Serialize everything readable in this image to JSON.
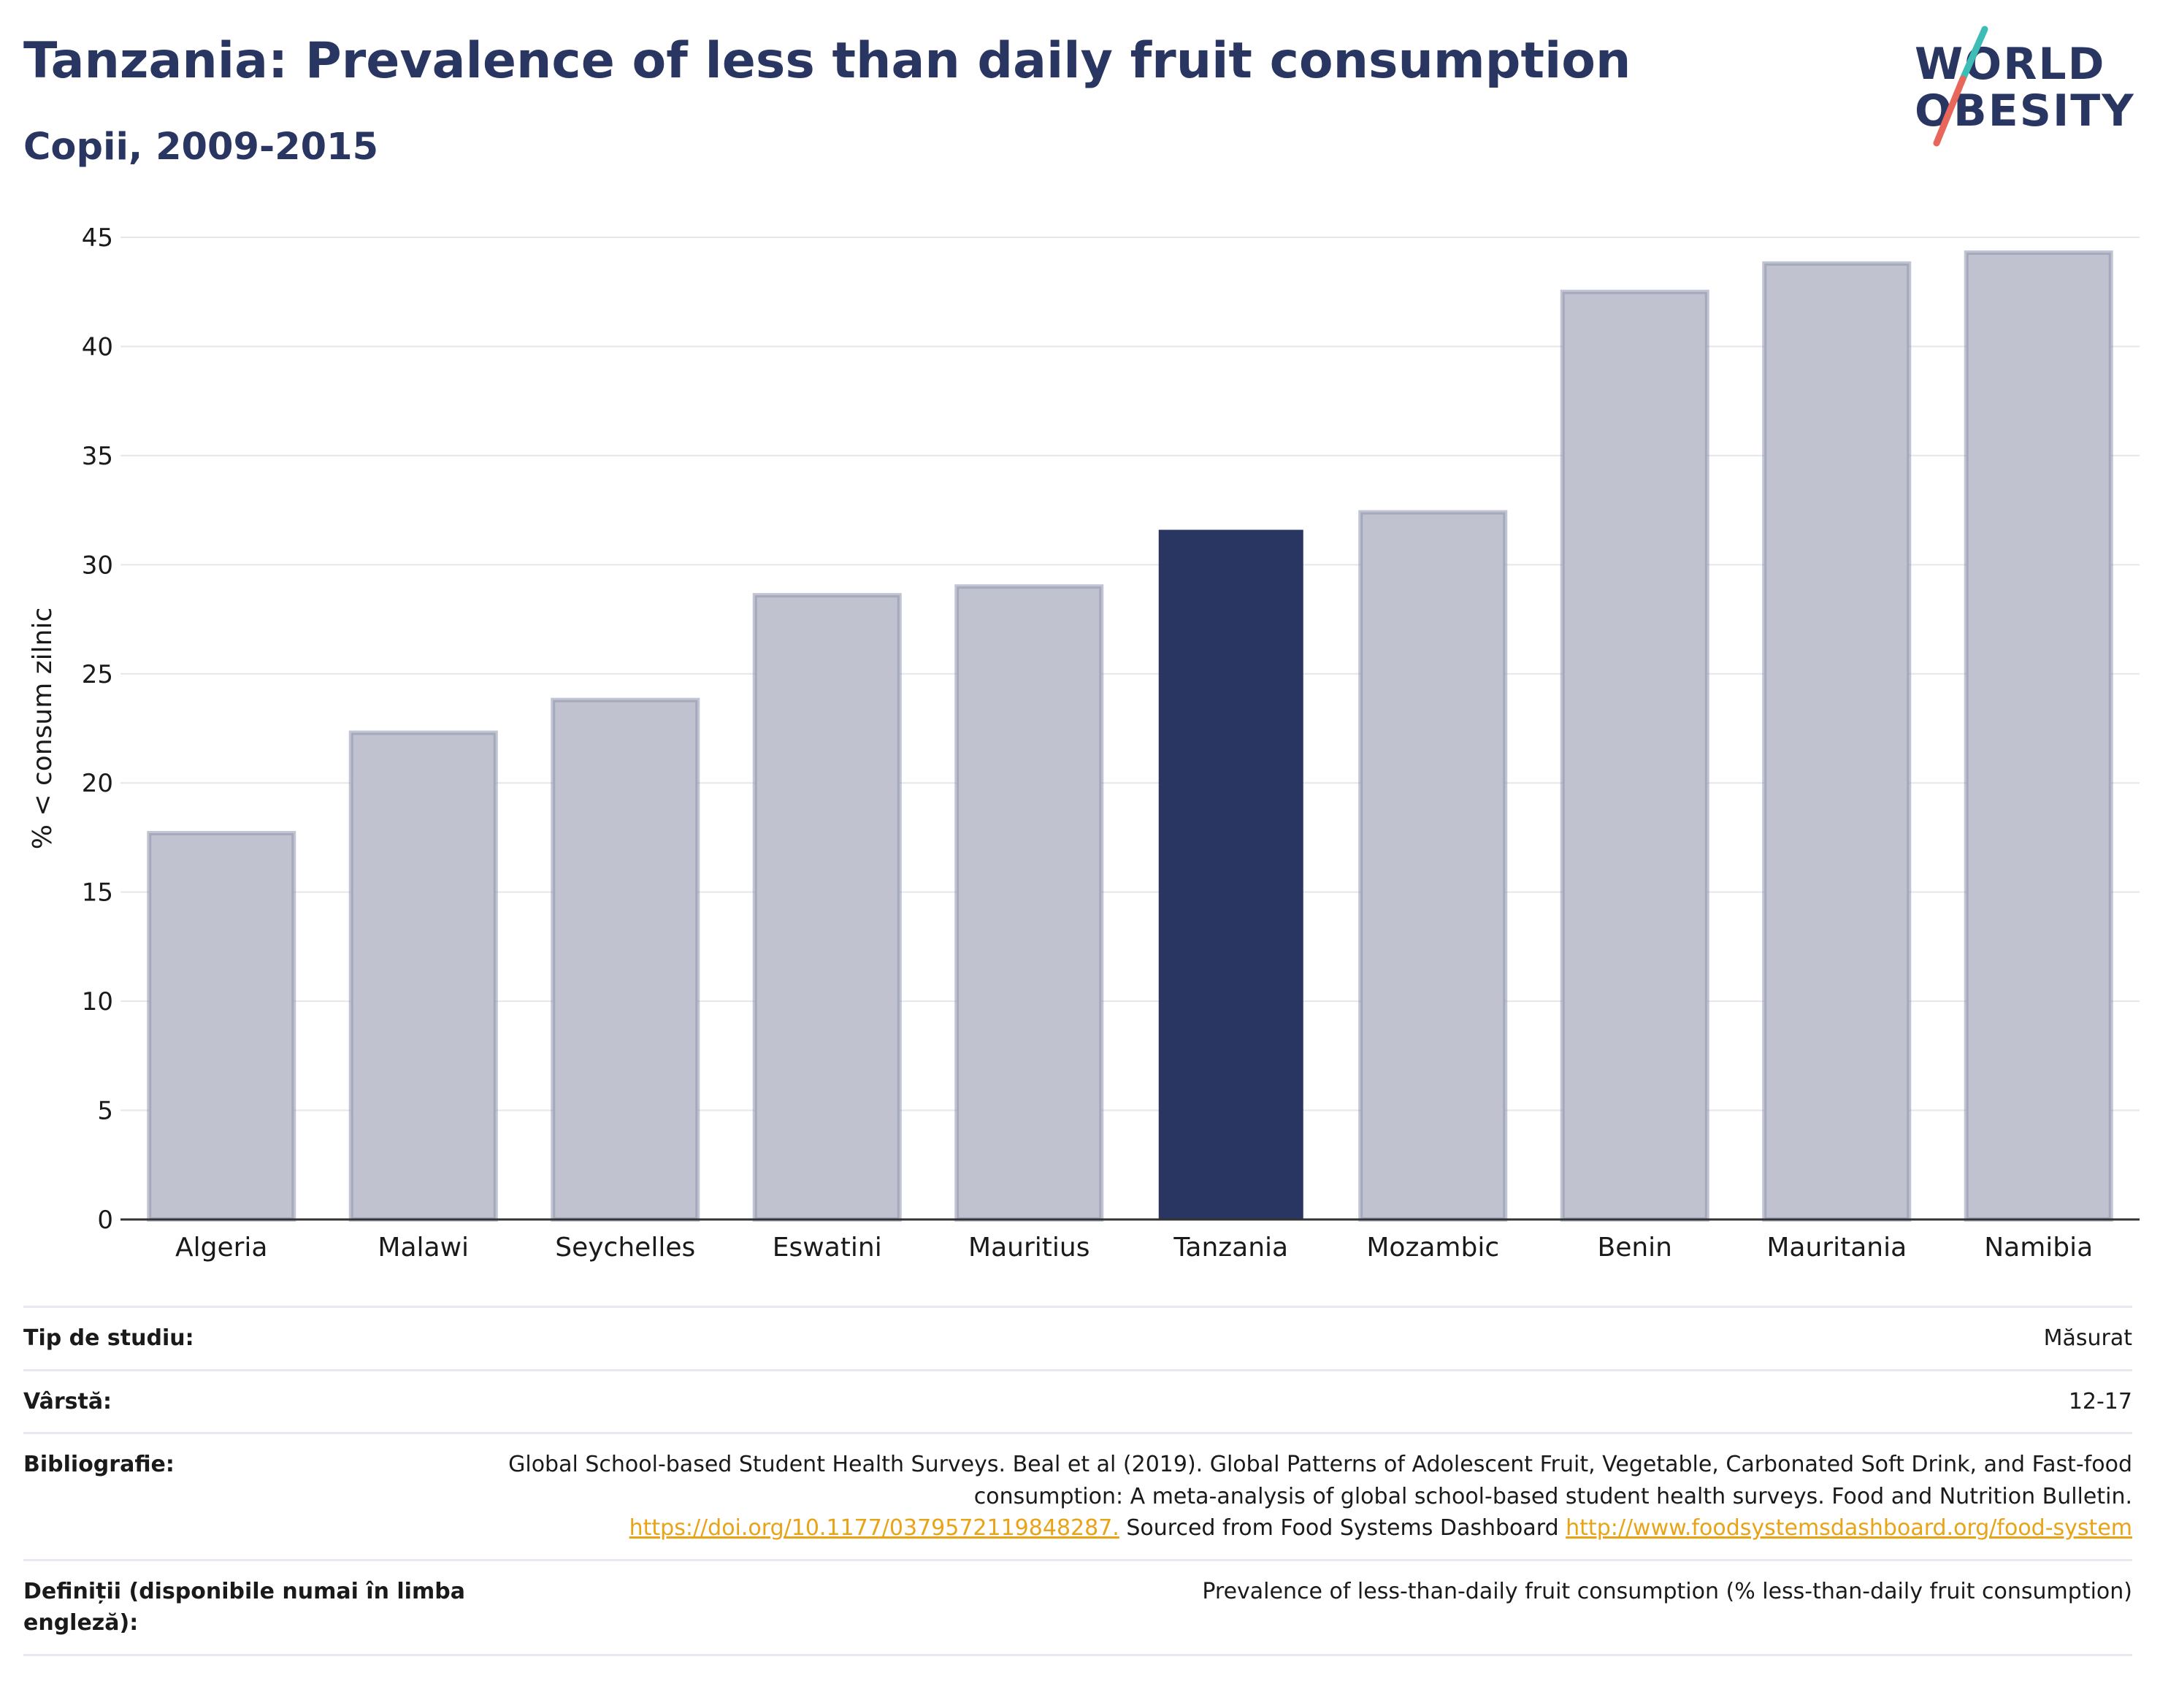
{
  "header": {
    "title": "Tanzania: Prevalence of less than daily fruit consumption",
    "subtitle": "Copii, 2009-2015"
  },
  "logo": {
    "line1": "WORLD",
    "line2": "OBESITY",
    "colors": {
      "text": "#2a3662",
      "slash_top": "#3dbdb5",
      "slash_bottom": "#e8665a"
    }
  },
  "colors": {
    "highlight_bar": "#2a3662",
    "other_bar_fill": "#c0c3cf",
    "other_bar_stroke": "#8e94ad",
    "grid": "#e6e6ec",
    "axis": "#333333",
    "link": "#e8a317"
  },
  "chart_data": {
    "type": "bar",
    "title": "Tanzania: Prevalence of less than daily fruit consumption",
    "subtitle": "Copii, 2009-2015",
    "ylabel": "% < consum zilnic",
    "xlabel": "",
    "ylim": [
      0,
      45
    ],
    "yticks": [
      0,
      5,
      10,
      15,
      20,
      25,
      30,
      35,
      40,
      45
    ],
    "grid": true,
    "categories": [
      "Algeria",
      "Malawi",
      "Seychelles",
      "Eswatini",
      "Mauritius",
      "Tanzania",
      "Mozambic",
      "Benin",
      "Mauritania",
      "Namibia"
    ],
    "values": [
      17.7,
      22.3,
      23.8,
      28.6,
      29.0,
      31.6,
      32.4,
      42.5,
      43.8,
      44.3
    ],
    "highlight": "Tanzania"
  },
  "info": {
    "rows": [
      {
        "label": "Tip de studiu:",
        "value": "Măsurat"
      },
      {
        "label": "Vârstă:",
        "value": "12-17"
      }
    ],
    "bibliography": {
      "label": "Bibliografie:",
      "text1": "Global School-based Student Health Surveys. Beal et al (2019). Global Patterns of Adolescent Fruit, Vegetable, Carbonated Soft Drink, and Fast-food consumption: A meta-analysis of global school-based student health surveys. Food and Nutrition Bulletin.",
      "link1": "https://doi.org/10.1177/0379572119848287.",
      "text2": " Sourced from Food Systems Dashboard ",
      "link2": "http://www.foodsystemsdashboard.org/food-system"
    },
    "definitions": {
      "label": "Definiții (disponibile numai în limba engleză):",
      "value": "Prevalence of less-than-daily fruit consumption (% less-than-daily fruit consumption)"
    }
  }
}
